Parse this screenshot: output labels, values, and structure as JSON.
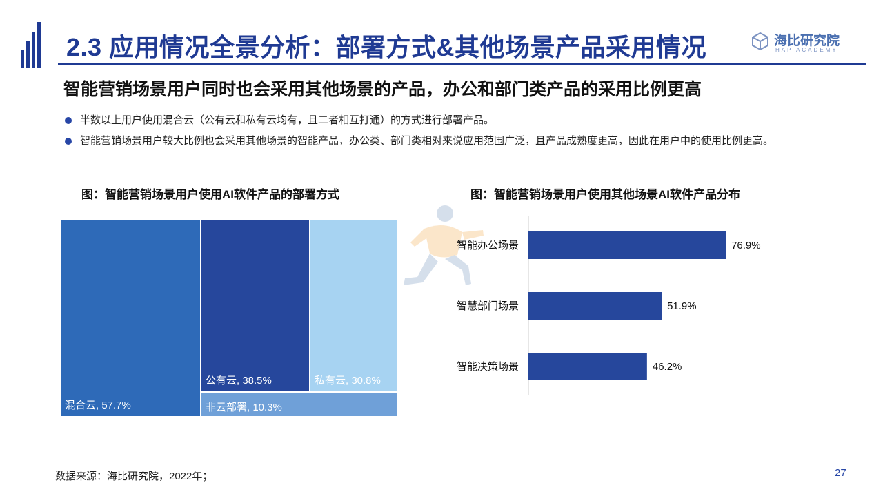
{
  "header": {
    "title": "2.3 应用情况全景分析：部署方式&其他场景产品采用情况",
    "brand_name": "海比研究院",
    "brand_sub": "HAP ACADEMY"
  },
  "subtitle": "智能营销场景用户同时也会采用其他场景的产品，办公和部门类产品的采用比例更高",
  "bullets": [
    "半数以上用户使用混合云（公有云和私有云均有，且二者相互打通）的方式进行部署产品。",
    "智能营销场景用户较大比例也会采用其他场景的智能产品，办公类、部门类相对来说应用范围广泛，且产品成熟度更高，因此在用户中的使用比例更高。"
  ],
  "charts": {
    "left_title": "图：智能营销场景用户使用AI软件产品的部署方式",
    "right_title": "图：智能营销场景用户使用其他场景AI软件产品分布"
  },
  "chart_data": [
    {
      "type": "treemap",
      "title": "图：智能营销场景用户使用AI软件产品的部署方式",
      "items": [
        {
          "label": "混合云, 57.7%",
          "name": "混合云",
          "value": 57.7,
          "color": "#2e6ab8"
        },
        {
          "label": "公有云, 38.5%",
          "name": "公有云",
          "value": 38.5,
          "color": "#26479c"
        },
        {
          "label": "私有云, 30.8%",
          "name": "私有云",
          "value": 30.8,
          "color": "#a7d3f2"
        },
        {
          "label": "非云部署, 10.3%",
          "name": "非云部署",
          "value": 10.3,
          "color": "#6fa0d8"
        }
      ]
    },
    {
      "type": "bar",
      "orientation": "horizontal",
      "title": "图：智能营销场景用户使用其他场景AI软件产品分布",
      "categories": [
        "智能办公场景",
        "智慧部门场景",
        "智能决策场景"
      ],
      "values": [
        76.9,
        51.9,
        46.2
      ],
      "labels": [
        "76.9%",
        "51.9%",
        "46.2%"
      ],
      "color": "#26479c",
      "xlim": [
        0,
        100
      ]
    }
  ],
  "footer": {
    "source": "数据来源：海比研究院，2022年；",
    "page": "27"
  }
}
